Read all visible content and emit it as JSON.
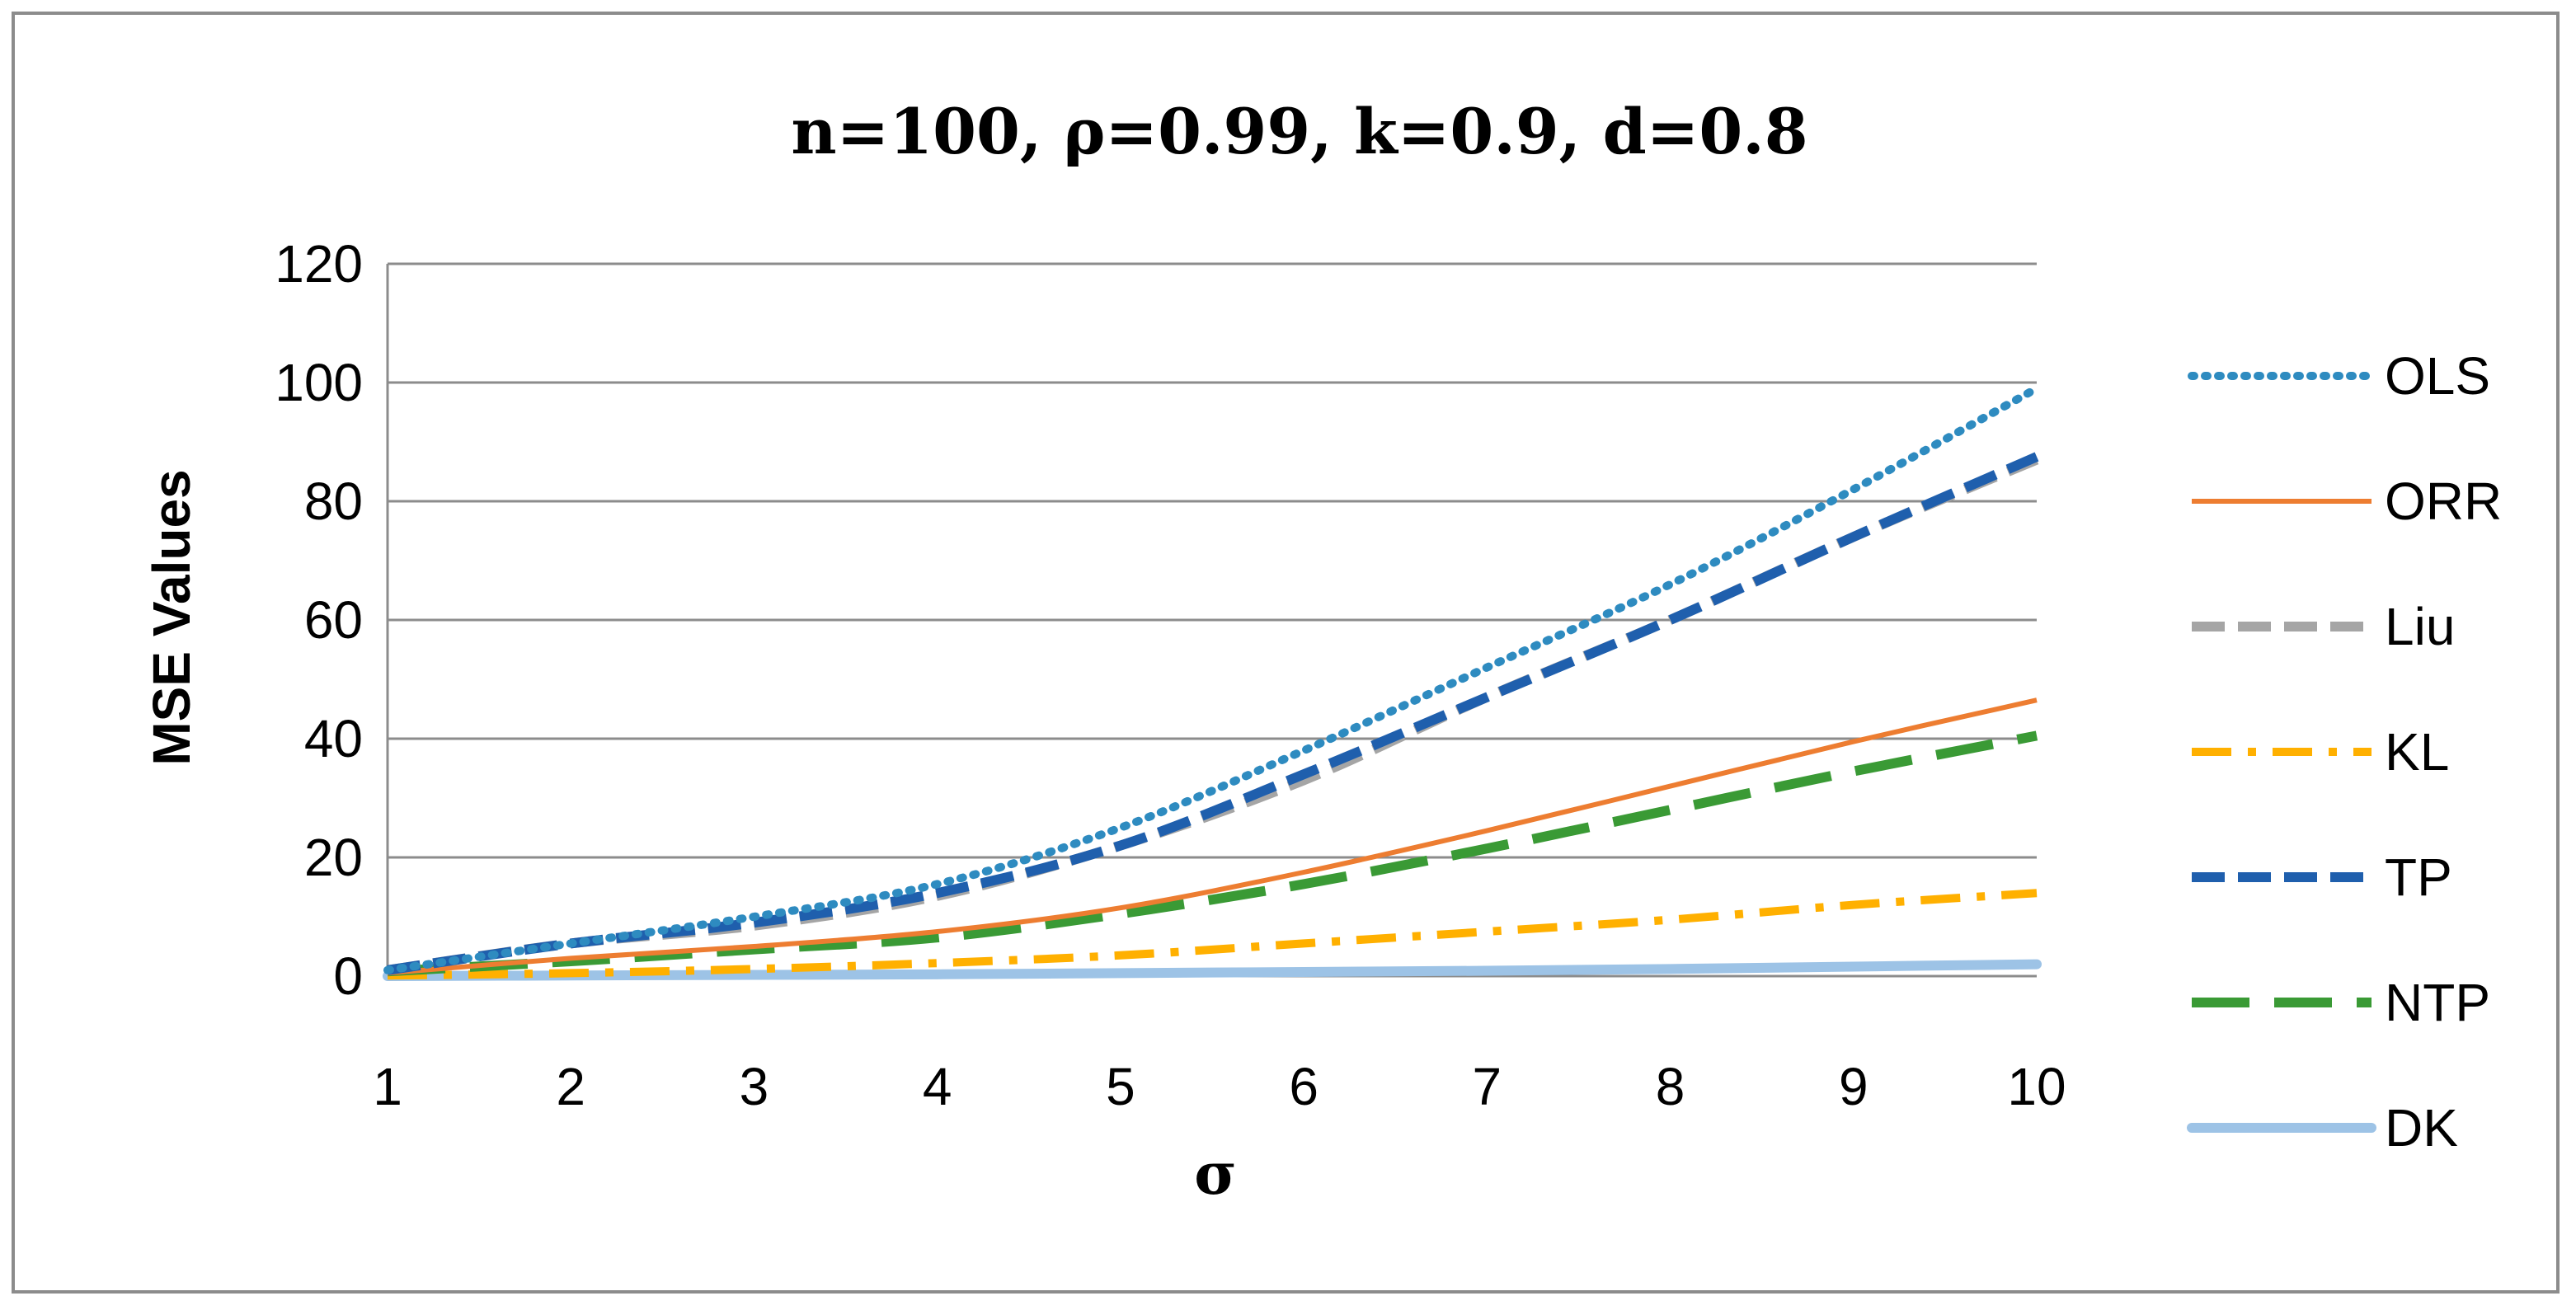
{
  "chart_data": {
    "type": "line",
    "title": "n=100, ρ=0.99, k=0.9, d=0.8",
    "xlabel": "σ",
    "ylabel": "MSE Values",
    "x": [
      1,
      2,
      3,
      4,
      5,
      6,
      7,
      8,
      9,
      10
    ],
    "xlim": [
      1,
      10
    ],
    "ylim": [
      0,
      120
    ],
    "yticks": [
      0,
      20,
      40,
      60,
      80,
      100,
      120
    ],
    "grid": "horizontal",
    "legend_position": "right",
    "series": [
      {
        "name": "OLS",
        "color": "#2E8BC0",
        "style": "dotted",
        "values": [
          1,
          5.5,
          10,
          15.5,
          25,
          38,
          52,
          66,
          82,
          99
        ]
      },
      {
        "name": "ORR",
        "color": "#ED7D31",
        "style": "solid",
        "values": [
          0.5,
          3,
          5,
          7.5,
          11.5,
          17.5,
          24.5,
          32,
          39.5,
          46.5
        ]
      },
      {
        "name": "Liu",
        "color": "#A5A5A5",
        "style": "dashed",
        "values": [
          1,
          5.5,
          8.5,
          13.5,
          22,
          33,
          47,
          60,
          74,
          87
        ]
      },
      {
        "name": "KL",
        "color": "#FFB000",
        "style": "dashdot",
        "values": [
          0.1,
          0.5,
          1.2,
          2.2,
          3.5,
          5.5,
          7.5,
          9.5,
          12,
          14
        ]
      },
      {
        "name": "TP",
        "color": "#1F5FAD",
        "style": "dashed",
        "values": [
          1,
          5.5,
          9,
          14,
          22,
          34,
          47,
          60,
          74,
          87.5
        ]
      },
      {
        "name": "NTP",
        "color": "#3A9A35",
        "style": "longdash",
        "values": [
          0.8,
          2.5,
          4.5,
          6.5,
          10.5,
          15.5,
          21.5,
          28,
          34.5,
          40.5
        ]
      },
      {
        "name": "DK",
        "color": "#9DC3E6",
        "style": "thick",
        "values": [
          0,
          0.1,
          0.2,
          0.3,
          0.5,
          0.7,
          0.9,
          1.2,
          1.6,
          2
        ]
      }
    ]
  }
}
